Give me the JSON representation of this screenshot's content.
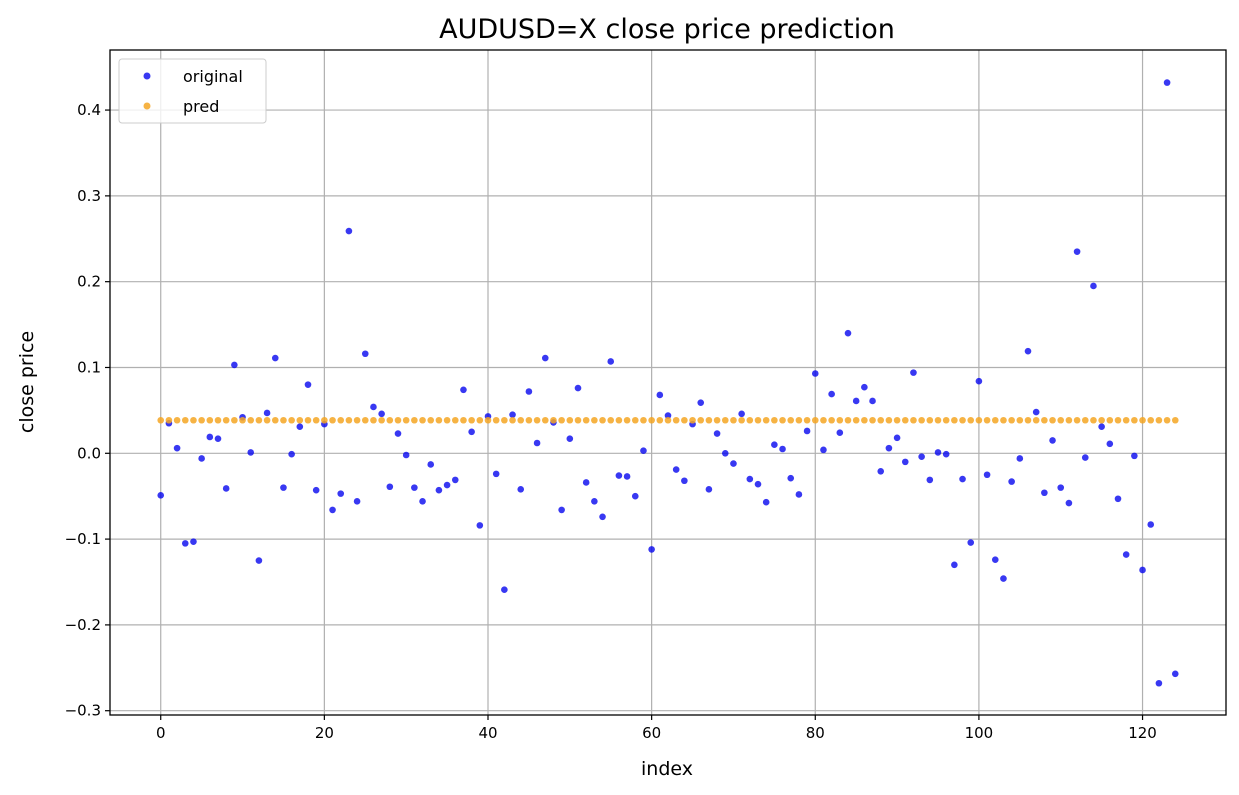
{
  "chart_data": {
    "type": "scatter",
    "title": "AUDUSD=X close price prediction",
    "xlabel": "index",
    "ylabel": "close price",
    "xlim": [
      -6.2,
      130.2
    ],
    "ylim": [
      -0.305,
      0.47
    ],
    "xticks": [
      0,
      20,
      40,
      60,
      80,
      100,
      120
    ],
    "yticks": [
      -0.3,
      -0.2,
      -0.1,
      0.0,
      0.1,
      0.2,
      0.3,
      0.4
    ],
    "ytick_labels": [
      "−0.3",
      "−0.2",
      "−0.1",
      "0.0",
      "0.1",
      "0.2",
      "0.3",
      "0.4"
    ],
    "xtick_labels": [
      "0",
      "20",
      "40",
      "60",
      "80",
      "100",
      "120"
    ],
    "grid": true,
    "legend_position": "top-left",
    "series": [
      {
        "name": "original",
        "color": "#0000ee",
        "values": [
          -0.049,
          0.035,
          0.006,
          -0.105,
          -0.103,
          -0.006,
          0.019,
          0.017,
          -0.041,
          0.103,
          0.042,
          0.001,
          -0.125,
          0.047,
          0.111,
          -0.04,
          -0.001,
          0.031,
          0.08,
          -0.043,
          0.034,
          -0.066,
          -0.047,
          0.259,
          -0.056,
          0.116,
          0.054,
          0.046,
          -0.039,
          0.023,
          -0.002,
          -0.04,
          -0.056,
          -0.013,
          -0.043,
          -0.037,
          -0.031,
          0.074,
          0.025,
          -0.084,
          0.043,
          -0.024,
          -0.159,
          0.045,
          -0.042,
          0.072,
          0.012,
          0.111,
          0.036,
          -0.066,
          0.017,
          0.076,
          -0.034,
          -0.056,
          -0.074,
          0.107,
          -0.026,
          -0.027,
          -0.05,
          0.003,
          -0.112,
          0.068,
          0.044,
          -0.019,
          -0.032,
          0.034,
          0.059,
          -0.042,
          0.023,
          0.0,
          -0.012,
          0.046,
          -0.03,
          -0.036,
          -0.057,
          0.01,
          0.005,
          -0.029,
          -0.048,
          0.026,
          0.093,
          0.004,
          0.069,
          0.024,
          0.14,
          0.061,
          0.077,
          0.061,
          -0.021,
          0.006,
          0.018,
          -0.01,
          0.094,
          -0.004,
          -0.031,
          0.001,
          -0.001,
          -0.13,
          -0.03,
          -0.104,
          0.084,
          -0.025,
          -0.124,
          -0.146,
          -0.033,
          -0.006,
          0.119,
          0.048,
          -0.046,
          0.015,
          -0.04,
          -0.058,
          0.235,
          -0.005,
          0.195,
          0.031,
          0.011,
          -0.053,
          -0.118,
          -0.003,
          -0.136,
          -0.083,
          -0.268,
          0.432,
          -0.257
        ]
      },
      {
        "name": "pred",
        "color": "#f5a623",
        "constant_value": 0.0385,
        "count": 125
      }
    ]
  }
}
